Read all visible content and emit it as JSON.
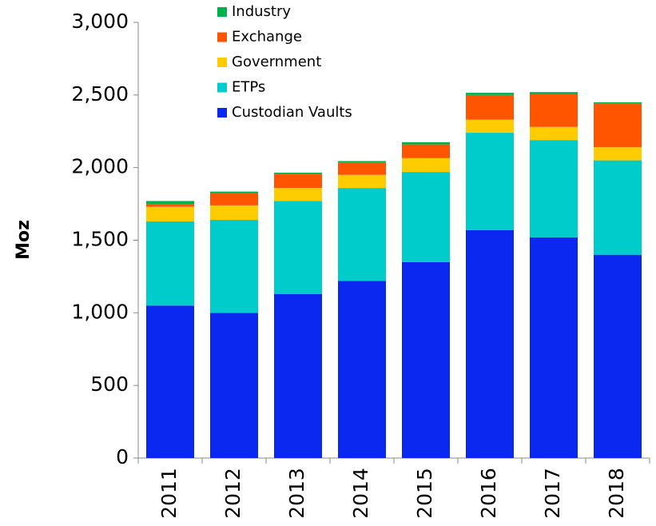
{
  "chart_data": {
    "type": "stacked_bar",
    "y_label": "Moz",
    "categories": [
      "2011",
      "2012",
      "2013",
      "2014",
      "2015",
      "2016",
      "2017",
      "2018"
    ],
    "series": [
      {
        "name": "Custodian Vaults",
        "color": "#0a28f0",
        "values": [
          1050,
          1000,
          1130,
          1220,
          1350,
          1570,
          1520,
          1400
        ]
      },
      {
        "name": "ETPs",
        "color": "#00cccc",
        "values": [
          580,
          640,
          640,
          640,
          620,
          670,
          670,
          650
        ]
      },
      {
        "name": "Government",
        "color": "#ffcc00",
        "values": [
          100,
          100,
          90,
          90,
          95,
          90,
          90,
          90
        ]
      },
      {
        "name": "Exchange",
        "color": "#ff5500",
        "values": [
          20,
          85,
          95,
          85,
          95,
          170,
          225,
          300
        ]
      },
      {
        "name": "Industry",
        "color": "#00b050",
        "values": [
          20,
          10,
          10,
          10,
          15,
          15,
          15,
          10
        ]
      }
    ],
    "ylim": [
      0,
      3000
    ],
    "yticks": [
      0,
      {
        "value": 500,
        "label": "500"
      },
      {
        "value": 1000,
        "label": "1,000"
      },
      {
        "value": 1500,
        "label": "1,500"
      },
      {
        "value": 2000,
        "label": "2,000"
      },
      {
        "value": 2500,
        "label": "2,500"
      },
      {
        "value": 3000,
        "label": "3,000"
      }
    ],
    "legend": "upper left",
    "grid": false
  }
}
